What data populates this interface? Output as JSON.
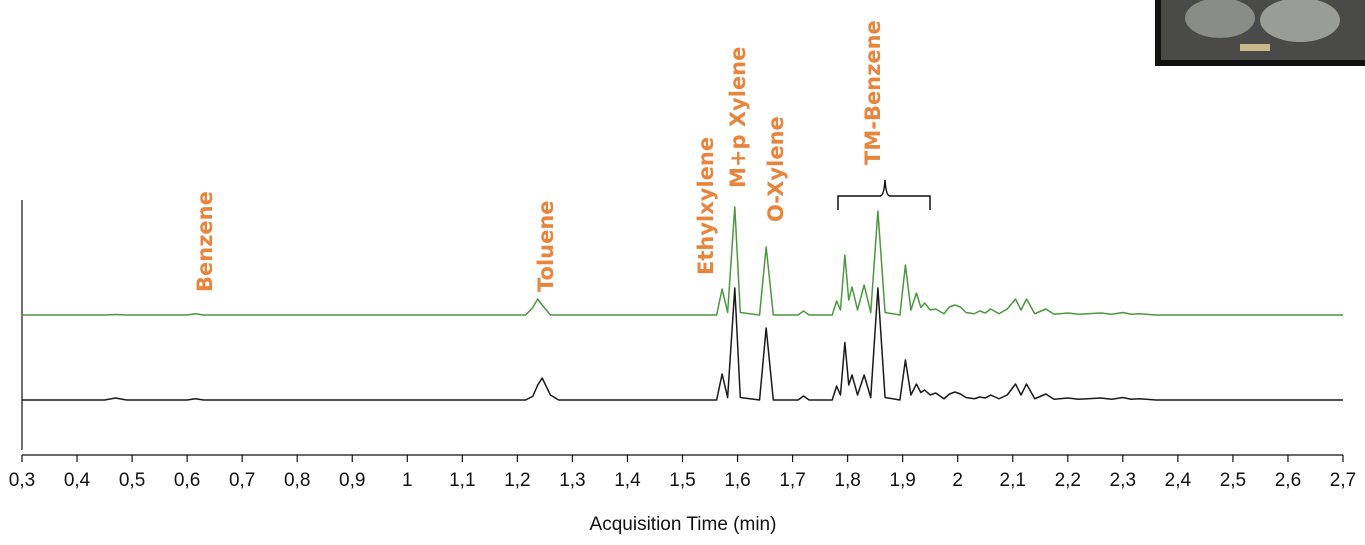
{
  "chart_data": {
    "type": "line",
    "x_label": "Acquisition Time (min)",
    "annotations": [
      "Benzene",
      "Toluene",
      "Ethylxylene",
      "M+p Xylene",
      "O-Xylene",
      "TM-Benzene"
    ],
    "x": [
      0.3,
      0.45,
      0.47,
      0.49,
      0.6,
      0.615,
      0.63,
      1.215,
      1.228,
      1.237,
      1.245,
      1.26,
      1.275,
      1.562,
      1.572,
      1.582,
      1.595,
      1.605,
      1.64,
      1.652,
      1.665,
      1.71,
      1.72,
      1.73,
      1.772,
      1.78,
      1.787,
      1.795,
      1.802,
      1.808,
      1.818,
      1.83,
      1.842,
      1.855,
      1.868,
      1.895,
      1.905,
      1.915,
      1.925,
      1.933,
      1.94,
      1.95,
      1.96,
      1.975,
      1.985,
      1.995,
      2.005,
      2.015,
      2.03,
      2.04,
      2.05,
      2.06,
      2.075,
      2.09,
      2.105,
      2.115,
      2.125,
      2.14,
      2.16,
      2.175,
      2.2,
      2.22,
      2.26,
      2.28,
      2.3,
      2.315,
      2.33,
      2.36,
      2.7
    ],
    "series": [
      {
        "color": "#4a9a3c",
        "values": [
          54,
          54,
          54.2,
          54,
          54,
          54.5,
          54,
          54,
          57,
          60.4,
          58,
          54,
          54,
          54,
          64.4,
          55,
          97.2,
          55,
          54,
          81.2,
          54,
          54,
          55.6,
          54,
          54,
          59.6,
          56,
          78,
          60,
          65.2,
          56,
          66,
          55,
          95.6,
          55,
          54,
          74,
          56,
          62.8,
          57,
          58.8,
          56,
          56.4,
          54.5,
          57.2,
          58,
          57.2,
          55,
          54.5,
          55.6,
          54.8,
          56.4,
          54.5,
          56.4,
          60.4,
          56,
          60.4,
          54.5,
          56.4,
          54.3,
          54.8,
          54.3,
          54.8,
          54.3,
          55,
          54.3,
          54.5,
          54,
          54
        ]
      },
      {
        "color": "#1a1a1a",
        "values": [
          20,
          20,
          20.8,
          20,
          20,
          20.5,
          20,
          20,
          21.5,
          26,
          28.8,
          22,
          20,
          20,
          30.4,
          21,
          64.8,
          21,
          20,
          48.8,
          20,
          20,
          21.6,
          20,
          20,
          25.6,
          22,
          43,
          26,
          30,
          22,
          30,
          21,
          64.8,
          21,
          20,
          36,
          22,
          26.4,
          23,
          24,
          22,
          22.8,
          20.5,
          22.4,
          23.2,
          22.4,
          21,
          20.5,
          21.2,
          20.8,
          22,
          20.5,
          22,
          26.4,
          22,
          26.4,
          20.5,
          22.4,
          20.3,
          20.8,
          20.3,
          20.8,
          20.3,
          21,
          20.3,
          20.5,
          20,
          20
        ]
      }
    ],
    "xlim": [
      0.3,
      2.7
    ],
    "ylim": [
      0,
      100
    ],
    "xticks": [
      {
        "value": 0.3,
        "label": "0,3"
      },
      {
        "value": 0.4,
        "label": "0,4"
      },
      {
        "value": 0.5,
        "label": "0,5"
      },
      {
        "value": 0.6,
        "label": "0,6"
      },
      {
        "value": 0.7,
        "label": "0,7"
      },
      {
        "value": 0.8,
        "label": "0,8"
      },
      {
        "value": 0.9,
        "label": "0,9"
      },
      1,
      {
        "value": 1.1,
        "label": "1,1"
      },
      {
        "value": 1.2,
        "label": "1,2"
      },
      {
        "value": 1.3,
        "label": "1,3"
      },
      {
        "value": 1.4,
        "label": "1,4"
      },
      {
        "value": 1.5,
        "label": "1,5"
      },
      {
        "value": 1.6,
        "label": "1,6"
      },
      {
        "value": 1.7,
        "label": "1,7"
      },
      {
        "value": 1.8,
        "label": "1,8"
      },
      {
        "value": 1.9,
        "label": "1,9"
      },
      2,
      {
        "value": 2.1,
        "label": "2,1"
      },
      {
        "value": 2.2,
        "label": "2,2"
      },
      {
        "value": 2.3,
        "label": "2,3"
      },
      {
        "value": 2.4,
        "label": "2,4"
      },
      {
        "value": 2.5,
        "label": "2,5"
      },
      {
        "value": 2.6,
        "label": "2,6"
      },
      {
        "value": 2.7,
        "label": "2,7"
      }
    ]
  }
}
